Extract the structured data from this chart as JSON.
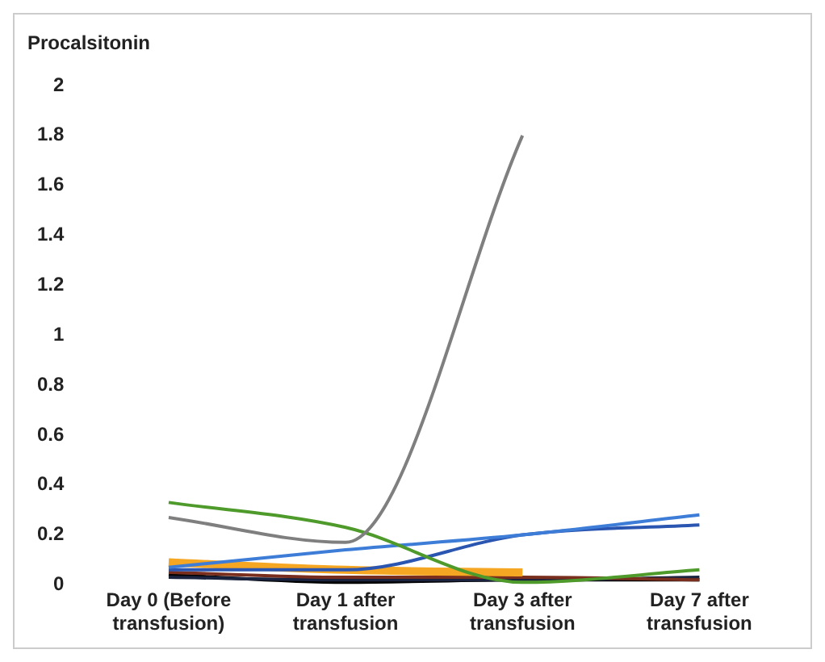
{
  "chart_data": {
    "type": "line",
    "ylabel": "Procalsitonin",
    "categories": [
      "Day 0 (Before transfusion)",
      "Day 1 after transfusion",
      "Day 3 after transfusion",
      "Day 7 after transfusion"
    ],
    "series": [
      {
        "color": "#7f7f7f",
        "values": [
          0.27,
          0.17,
          1.8,
          null
        ]
      },
      {
        "color": "#4e9a2a",
        "values": [
          0.33,
          0.23,
          0.01,
          0.06
        ]
      },
      {
        "color": "#3d7dd8",
        "values": [
          0.07,
          0.14,
          0.2,
          0.28
        ]
      },
      {
        "color": "#2a55b0",
        "values": [
          0.06,
          0.06,
          0.2,
          0.24
        ]
      },
      {
        "color": "#f5a623",
        "values": [
          0.09,
          0.06,
          0.05,
          null
        ]
      },
      {
        "color": "#7a2e1e",
        "values": [
          0.05,
          0.03,
          0.03,
          0.02
        ]
      },
      {
        "color": "#1a2440",
        "values": [
          0.03,
          0.02,
          0.02,
          0.03
        ]
      },
      {
        "color": "#000000",
        "values": [
          0.04,
          0.01,
          0.02,
          0.02
        ]
      }
    ],
    "ylim": [
      0,
      2
    ],
    "yticks": [
      0,
      0.2,
      0.4,
      0.6,
      0.8,
      1,
      1.2,
      1.4,
      1.6,
      1.8,
      2
    ],
    "grid": false,
    "legend": false,
    "marker": "none",
    "line_style": "solid"
  }
}
